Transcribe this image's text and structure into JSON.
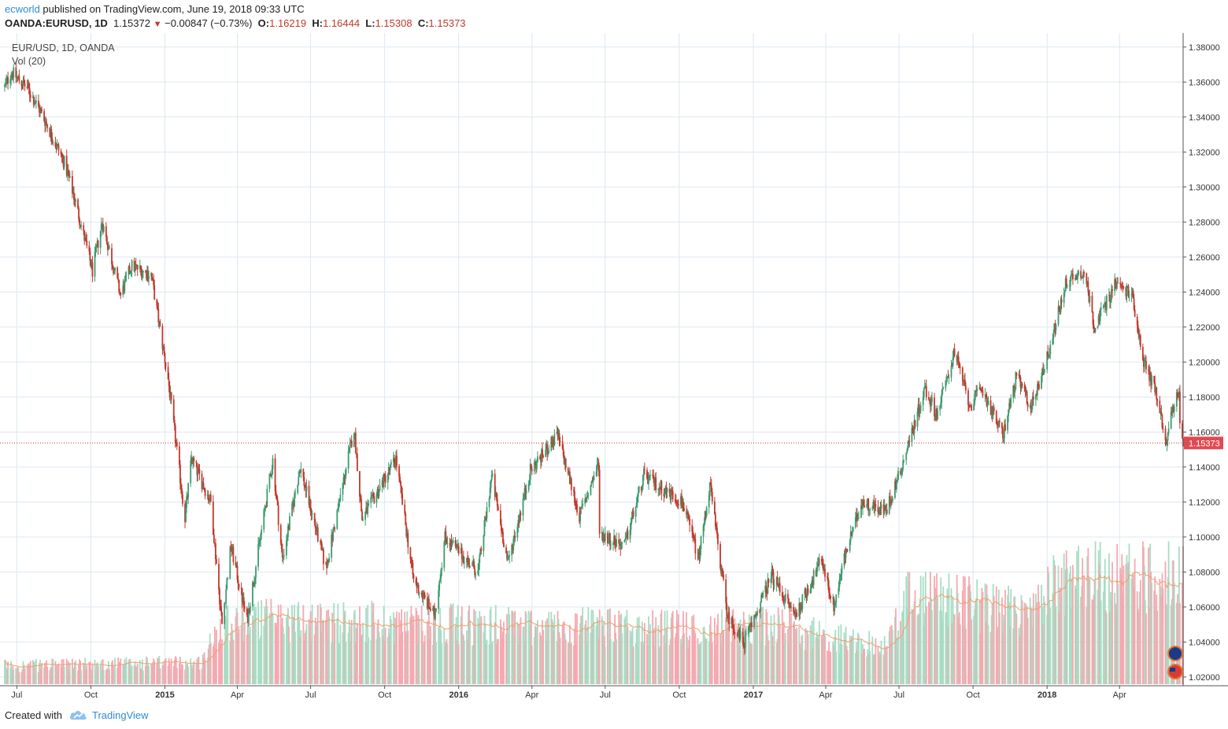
{
  "header": {
    "author": "ecworld",
    "published": " published on TradingView.com, June 19, 2018 09:33 UTC",
    "symbol": "OANDA:EURUSD, 1D",
    "last": "1.15372",
    "change": "−0.00847 (−0.73%)",
    "open_label": "O:",
    "open": "1.16219",
    "high_label": "H:",
    "high": "1.16444",
    "low_label": "L:",
    "low": "1.15308",
    "close_label": "C:",
    "close": "1.15373"
  },
  "legend": {
    "series": "EUR/USD, 1D, OANDA",
    "volume": "Vol (20)"
  },
  "footer": {
    "created": "Created with",
    "brand": "TradingView"
  },
  "colors": {
    "up": "#3d9a6f",
    "down": "#c0392b",
    "vol_up": "#a8dcc4",
    "vol_down": "#f5a9b0",
    "vol_ma": "#f0a070",
    "grid": "#dde7f0",
    "price_line": "#c0392b",
    "price_tag": "#e04a52",
    "brand": "#2f8bd6"
  },
  "chart_data": {
    "type": "candlestick",
    "title": "EUR/USD, 1D, OANDA",
    "x_range": [
      "2014-06-16",
      "2018-06-19"
    ],
    "ylim": [
      1.015,
      1.388
    ],
    "y_ticks": [
      "1.38000",
      "1.36000",
      "1.34000",
      "1.32000",
      "1.30000",
      "1.28000",
      "1.26000",
      "1.24000",
      "1.22000",
      "1.20000",
      "1.18000",
      "1.16000",
      "1.14000",
      "1.12000",
      "1.10000",
      "1.08000",
      "1.06000",
      "1.04000",
      "1.02000"
    ],
    "x_ticks": [
      {
        "label": "Jul",
        "date": "2014-07-01",
        "bold": false
      },
      {
        "label": "Oct",
        "date": "2014-10-01",
        "bold": false
      },
      {
        "label": "2015",
        "date": "2015-01-01",
        "bold": true
      },
      {
        "label": "Apr",
        "date": "2015-04-01",
        "bold": false
      },
      {
        "label": "Jul",
        "date": "2015-07-01",
        "bold": false
      },
      {
        "label": "Oct",
        "date": "2015-10-01",
        "bold": false
      },
      {
        "label": "2016",
        "date": "2016-01-01",
        "bold": true
      },
      {
        "label": "Apr",
        "date": "2016-04-01",
        "bold": false
      },
      {
        "label": "Jul",
        "date": "2016-07-01",
        "bold": false
      },
      {
        "label": "Oct",
        "date": "2016-10-01",
        "bold": false
      },
      {
        "label": "2017",
        "date": "2017-01-01",
        "bold": true
      },
      {
        "label": "Apr",
        "date": "2017-04-01",
        "bold": false
      },
      {
        "label": "Jul",
        "date": "2017-07-01",
        "bold": false
      },
      {
        "label": "Oct",
        "date": "2017-10-01",
        "bold": false
      },
      {
        "label": "2018",
        "date": "2018-01-01",
        "bold": true
      },
      {
        "label": "Apr",
        "date": "2018-04-01",
        "bold": false
      }
    ],
    "last_price": 1.15373,
    "last_price_label": "1.15373",
    "price_path": [
      {
        "date": "2014-06-16",
        "close": 1.357
      },
      {
        "date": "2014-06-24",
        "close": 1.366
      },
      {
        "date": "2014-07-15",
        "close": 1.356
      },
      {
        "date": "2014-08-01",
        "close": 1.342
      },
      {
        "date": "2014-08-29",
        "close": 1.314
      },
      {
        "date": "2014-09-10",
        "close": 1.295
      },
      {
        "date": "2014-10-03",
        "close": 1.252
      },
      {
        "date": "2014-10-15",
        "close": 1.28
      },
      {
        "date": "2014-11-07",
        "close": 1.238
      },
      {
        "date": "2014-11-20",
        "close": 1.255
      },
      {
        "date": "2014-12-15",
        "close": 1.25
      },
      {
        "date": "2015-01-05",
        "close": 1.19
      },
      {
        "date": "2015-01-26",
        "close": 1.111
      },
      {
        "date": "2015-02-03",
        "close": 1.145
      },
      {
        "date": "2015-02-27",
        "close": 1.12
      },
      {
        "date": "2015-03-13",
        "close": 1.05
      },
      {
        "date": "2015-03-24",
        "close": 1.095
      },
      {
        "date": "2015-04-13",
        "close": 1.052
      },
      {
        "date": "2015-05-15",
        "close": 1.144
      },
      {
        "date": "2015-05-27",
        "close": 1.087
      },
      {
        "date": "2015-06-18",
        "close": 1.14
      },
      {
        "date": "2015-07-20",
        "close": 1.082
      },
      {
        "date": "2015-08-24",
        "close": 1.162
      },
      {
        "date": "2015-09-03",
        "close": 1.11
      },
      {
        "date": "2015-10-15",
        "close": 1.145
      },
      {
        "date": "2015-11-06",
        "close": 1.075
      },
      {
        "date": "2015-12-02",
        "close": 1.055
      },
      {
        "date": "2015-12-15",
        "close": 1.1
      },
      {
        "date": "2016-01-25",
        "close": 1.08
      },
      {
        "date": "2016-02-11",
        "close": 1.135
      },
      {
        "date": "2016-03-02",
        "close": 1.085
      },
      {
        "date": "2016-03-30",
        "close": 1.138
      },
      {
        "date": "2016-05-03",
        "close": 1.158
      },
      {
        "date": "2016-05-30",
        "close": 1.112
      },
      {
        "date": "2016-06-23",
        "close": 1.142
      },
      {
        "date": "2016-06-24",
        "close": 1.102
      },
      {
        "date": "2016-07-25",
        "close": 1.095
      },
      {
        "date": "2016-08-18",
        "close": 1.135
      },
      {
        "date": "2016-10-05",
        "close": 1.12
      },
      {
        "date": "2016-10-25",
        "close": 1.088
      },
      {
        "date": "2016-11-08",
        "close": 1.13
      },
      {
        "date": "2016-11-30",
        "close": 1.055
      },
      {
        "date": "2016-12-20",
        "close": 1.039
      },
      {
        "date": "2017-01-24",
        "close": 1.078
      },
      {
        "date": "2017-02-22",
        "close": 1.055
      },
      {
        "date": "2017-03-27",
        "close": 1.087
      },
      {
        "date": "2017-04-11",
        "close": 1.06
      },
      {
        "date": "2017-04-24",
        "close": 1.088
      },
      {
        "date": "2017-05-16",
        "close": 1.12
      },
      {
        "date": "2017-06-15",
        "close": 1.115
      },
      {
        "date": "2017-07-03",
        "close": 1.138
      },
      {
        "date": "2017-08-02",
        "close": 1.185
      },
      {
        "date": "2017-08-17",
        "close": 1.17
      },
      {
        "date": "2017-09-08",
        "close": 1.206
      },
      {
        "date": "2017-09-27",
        "close": 1.175
      },
      {
        "date": "2017-10-12",
        "close": 1.185
      },
      {
        "date": "2017-11-07",
        "close": 1.158
      },
      {
        "date": "2017-11-24",
        "close": 1.192
      },
      {
        "date": "2017-12-12",
        "close": 1.174
      },
      {
        "date": "2018-01-02",
        "close": 1.204
      },
      {
        "date": "2018-01-25",
        "close": 1.246
      },
      {
        "date": "2018-02-16",
        "close": 1.252
      },
      {
        "date": "2018-03-01",
        "close": 1.22
      },
      {
        "date": "2018-03-27",
        "close": 1.245
      },
      {
        "date": "2018-04-17",
        "close": 1.238
      },
      {
        "date": "2018-05-01",
        "close": 1.2
      },
      {
        "date": "2018-05-15",
        "close": 1.185
      },
      {
        "date": "2018-05-29",
        "close": 1.155
      },
      {
        "date": "2018-06-08",
        "close": 1.178
      },
      {
        "date": "2018-06-14",
        "close": 1.18
      },
      {
        "date": "2018-06-15",
        "close": 1.161
      },
      {
        "date": "2018-06-19",
        "close": 1.1537
      }
    ],
    "volume_profile": [
      {
        "date": "2014-06-16",
        "level": 0.1
      },
      {
        "date": "2015-02-15",
        "level": 0.12
      },
      {
        "date": "2015-03-15",
        "level": 0.36
      },
      {
        "date": "2016-11-15",
        "level": 0.3
      },
      {
        "date": "2016-12-01",
        "level": 0.32
      },
      {
        "date": "2017-01-15",
        "level": 0.33
      },
      {
        "date": "2017-06-15",
        "level": 0.2
      },
      {
        "date": "2017-07-15",
        "level": 0.5
      },
      {
        "date": "2017-12-15",
        "level": 0.38
      },
      {
        "date": "2018-01-15",
        "level": 0.58
      },
      {
        "date": "2018-06-19",
        "level": 0.6
      }
    ]
  }
}
